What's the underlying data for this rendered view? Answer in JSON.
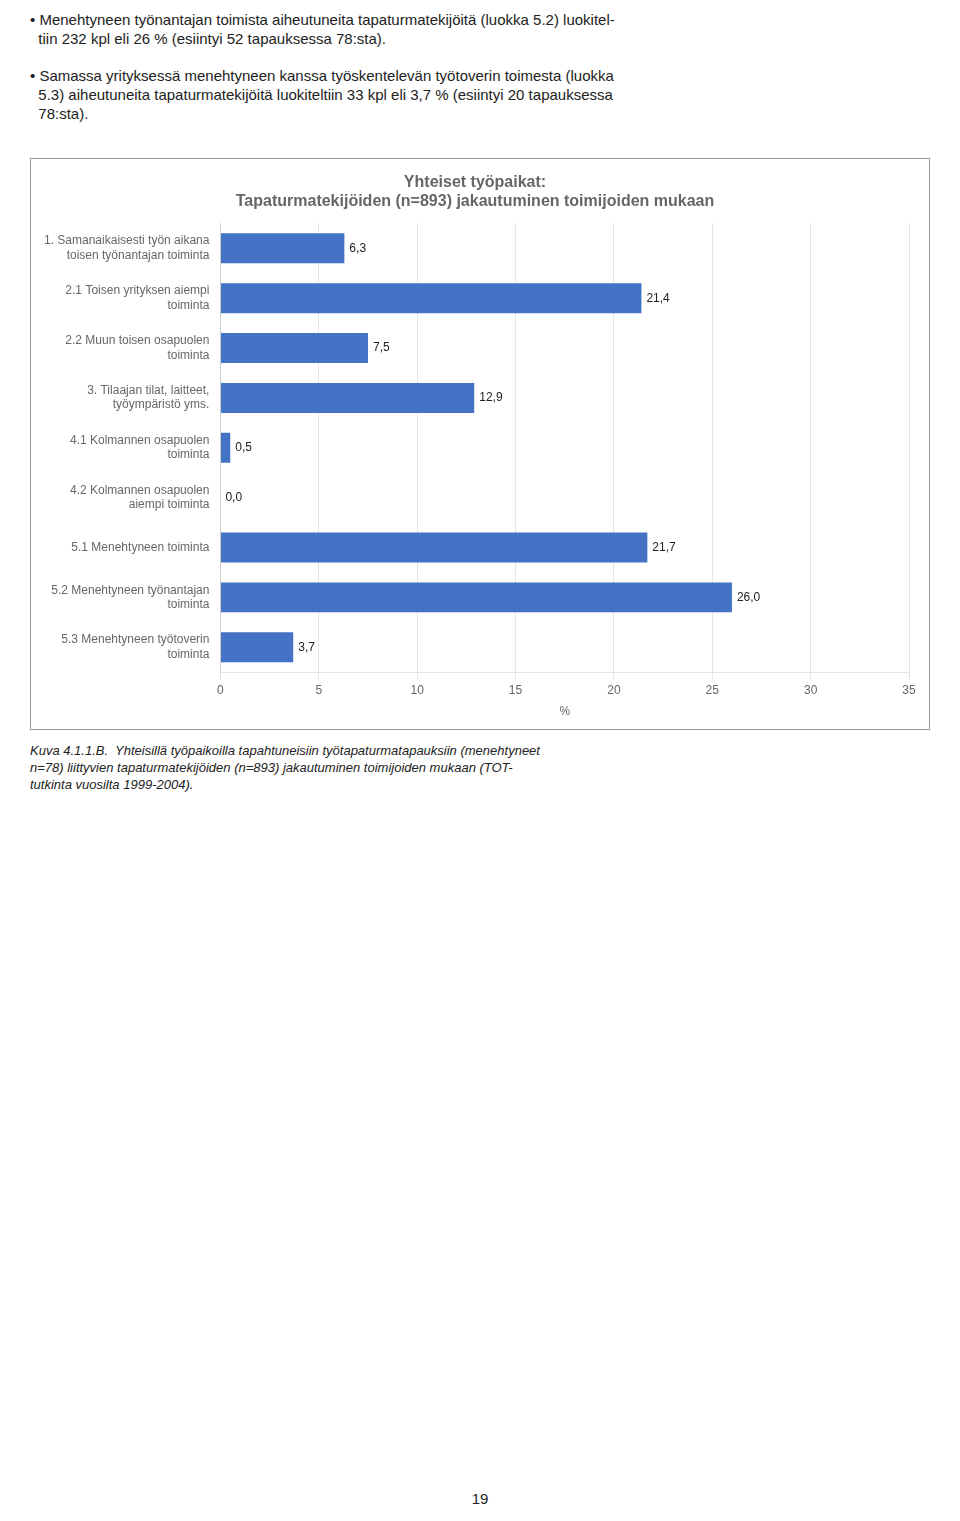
{
  "chart_data": {
    "type": "bar",
    "orientation": "horizontal",
    "title": [
      "Yhteiset työpaikat:",
      "Tapaturmatekijöiden (n=893) jakautuminen toimijoiden mukaan"
    ],
    "categories": [
      "1. Samanaikaisesti työn aikana\ntoisen työnantajan toiminta",
      "2.1 Toisen yrityksen aiempi\ntoiminta",
      "2.2 Muun toisen osapuolen\ntoiminta",
      "3. Tilaajan tilat, laitteet,\ntyöympäristö yms.",
      "4.1 Kolmannen osapuolen\ntoiminta",
      "4.2 Kolmannen osapuolen\naiempi toiminta",
      "5.1 Menehtyneen toiminta",
      "5.2 Menehtyneen työnantajan\ntoiminta",
      "5.3 Menehtyneen työtoverin\ntoiminta"
    ],
    "values": [
      6.3,
      21.4,
      7.5,
      12.9,
      0.5,
      0.0,
      21.7,
      26.0,
      3.7
    ],
    "value_labels": [
      "6,3",
      "21,4",
      "7,5",
      "12,9",
      "0,5",
      "0,0",
      "21,7",
      "26,0",
      "3,7"
    ],
    "data_labels": true,
    "color": "#4472C4",
    "xlabel": "%",
    "xlim": [
      0,
      35
    ],
    "xticks": [
      0,
      5,
      10,
      15,
      20,
      25,
      30,
      35
    ],
    "grid": true
  },
  "bullets": [
    "• Menehtyneen työnantajan toimista aiheutuneita tapaturmatekijöitä (luokka 5.2) luokitel-\n  tiin 232 kpl eli 26 % (esiintyi 52 tapauksessa 78:sta).",
    "• Samassa yrityksessä menehtyneen kanssa työskentelevän työtoverin toimesta (luokka\n  5.3) aiheutuneita tapaturmatekijöitä luokiteltiin 33 kpl eli 3,7 % (esiintyi 20 tapauksessa\n  78:sta)."
  ],
  "caption": "Kuva 4.1.1.B.  Yhteisillä työpaikoilla tapahtuneisiin työtapaturmatapauksiin (menehtyneet\nn=78) liittyvien tapaturmatekijöiden (n=893) jakautuminen toimijoiden mukaan (TOT-\ntutkinta vuosilta 1999-2004).",
  "page_number": "19"
}
